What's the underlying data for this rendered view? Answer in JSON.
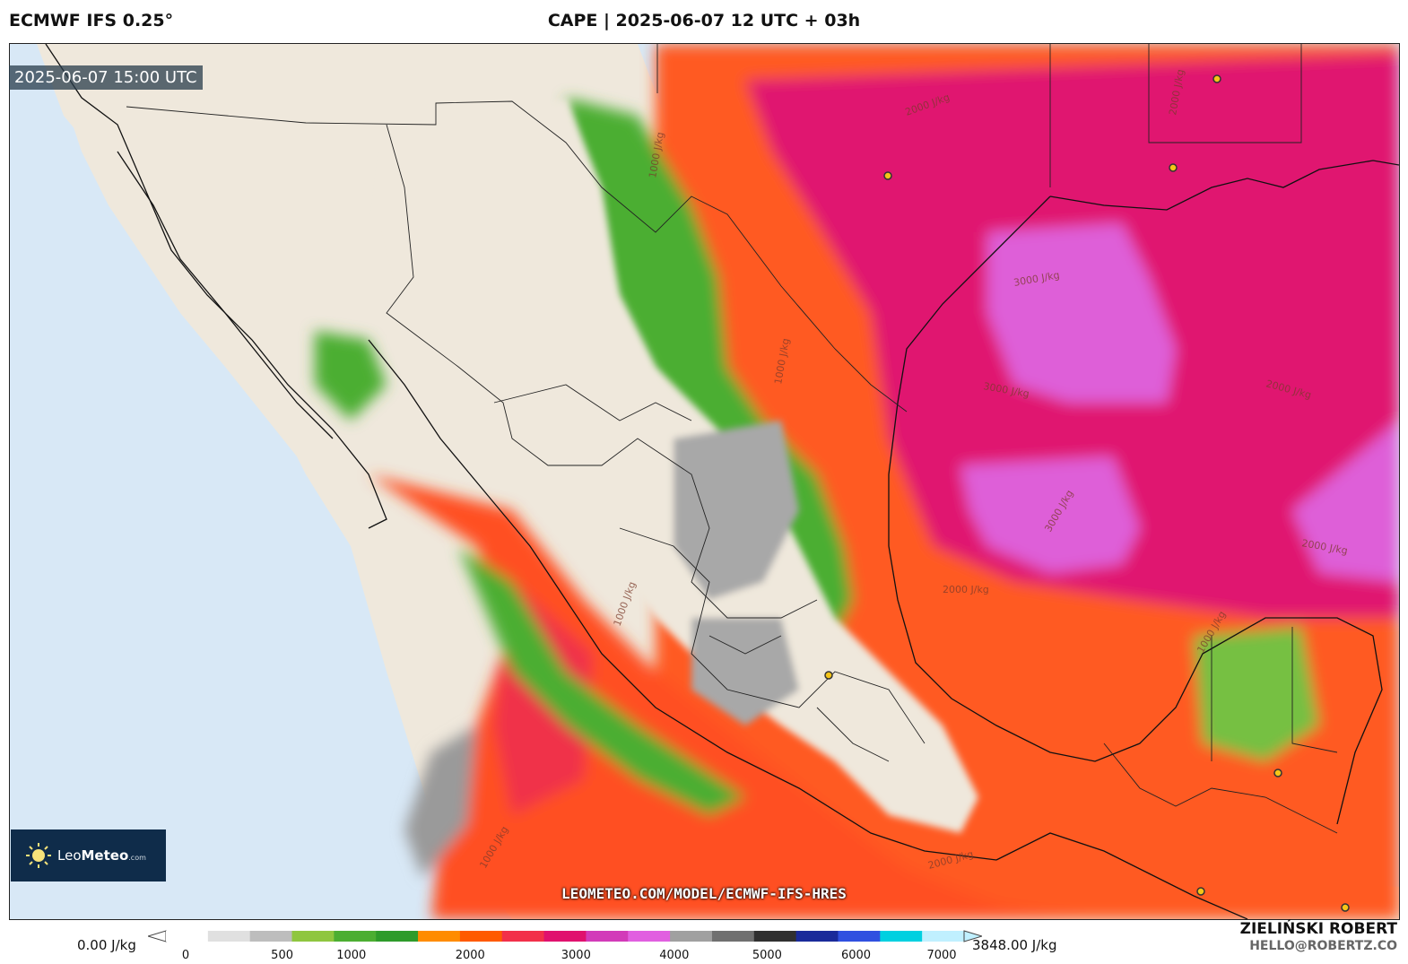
{
  "header": {
    "model": "ECMWF IFS 0.25°",
    "title": "CAPE | 2025-06-07 12 UTC + 03h"
  },
  "timestamp": "2025-06-07 15:00 UTC",
  "logo": {
    "brand_light": "Leo",
    "brand_bold": "Meteo",
    "suffix": ".com"
  },
  "url": "LEOMETEO.COM/MODEL/ECMWF-IFS-HRES",
  "legend": {
    "min_label": "0.00 J/kg",
    "max_label": "3848.00 J/kg",
    "ticks": [
      "0",
      "500",
      "1000",
      "2000",
      "3000",
      "4000",
      "5000",
      "6000",
      "7000"
    ],
    "colors": [
      "#ffffff",
      "#e0e0e0",
      "#bdbdbd",
      "#8fc63f",
      "#4cae32",
      "#2e9b2a",
      "#ff8c00",
      "#ff5a00",
      "#f2304a",
      "#e0116e",
      "#d23ab9",
      "#e15fe0",
      "#a0a0a0",
      "#707070",
      "#303030",
      "#1a2a9a",
      "#3050e0",
      "#00d0e0",
      "#c0f0ff"
    ]
  },
  "contour_labels": [
    "1000 J/kg",
    "1000 J/kg",
    "2000 J/kg",
    "3000 J/kg",
    "3000 J/kg",
    "2000 J/kg",
    "3000 J/kg",
    "2000 J/kg",
    "2000 J/kg",
    "1000 J/kg",
    "2000 J/kg",
    "1000 J/kg",
    "1000 J/kg",
    "2000 J/kg"
  ],
  "author": {
    "name": "ZIELIŃSKI ROBERT",
    "email": "HELLO@ROBERTZ.CO"
  }
}
